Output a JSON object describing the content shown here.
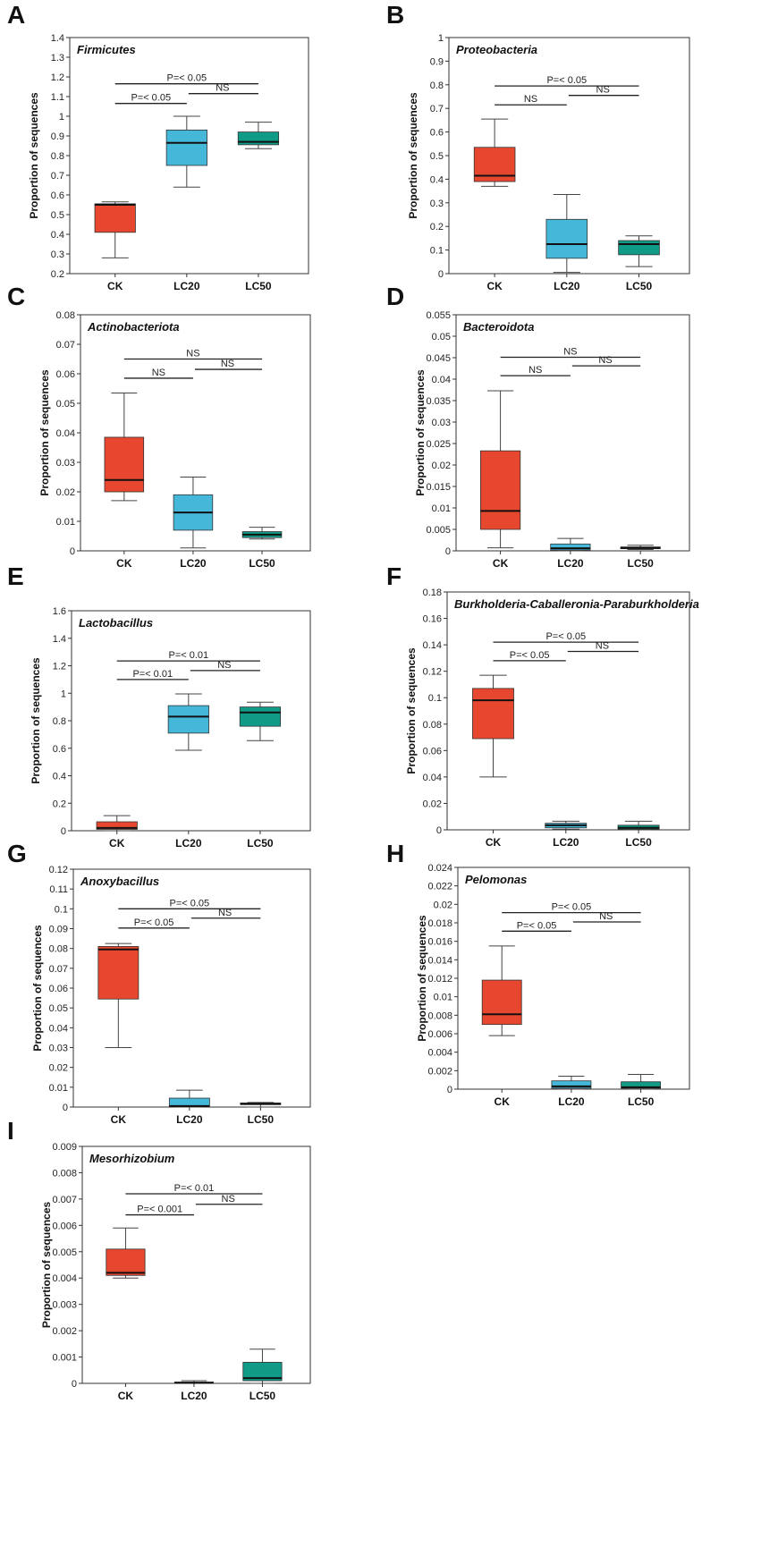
{
  "figure": {
    "y_axis_label": "Proportion of sequences",
    "colors": {
      "CK": "#e8472f",
      "LC20": "#45b8da",
      "LC50": "#109b87"
    }
  },
  "chart_data": [
    {
      "letter": "A",
      "type": "box",
      "title": "Firmicutes",
      "categories": [
        "CK",
        "LC20",
        "LC50"
      ],
      "ylim": [
        0.2,
        1.4
      ],
      "yticks": [
        0.2,
        0.3,
        0.4,
        0.5,
        0.6,
        0.7,
        0.8,
        0.9,
        1,
        1.1,
        1.2,
        1.3,
        1.4
      ],
      "ytick_labels": [
        "0.2",
        "0.3",
        "0.4",
        "0.5",
        "0.6",
        "0.7",
        "0.8",
        "0.9",
        "1",
        "1.1",
        "1.2",
        "1.3",
        "1.4"
      ],
      "boxes": [
        {
          "min": 0.28,
          "q1": 0.41,
          "median": 0.55,
          "q3": 0.555,
          "max": 0.565
        },
        {
          "min": 0.64,
          "q1": 0.75,
          "median": 0.865,
          "q3": 0.93,
          "max": 1.0
        },
        {
          "min": 0.835,
          "q1": 0.855,
          "median": 0.87,
          "q3": 0.92,
          "max": 0.97
        }
      ],
      "significance": [
        {
          "from": 0,
          "to": 2,
          "label": "P=< 0.05",
          "y": 1.165
        },
        {
          "from": 0,
          "to": 1,
          "label": "P=< 0.05",
          "y": 1.065
        },
        {
          "from": 1,
          "to": 2,
          "label": "NS",
          "y": 1.115
        }
      ]
    },
    {
      "letter": "B",
      "type": "box",
      "title": "Proteobacteria",
      "categories": [
        "CK",
        "LC20",
        "LC50"
      ],
      "ylim": [
        0,
        1
      ],
      "yticks": [
        0,
        0.1,
        0.2,
        0.3,
        0.4,
        0.5,
        0.6,
        0.7,
        0.8,
        0.9,
        1
      ],
      "ytick_labels": [
        "0",
        "0.1",
        "0.2",
        "0.3",
        "0.4",
        "0.5",
        "0.6",
        "0.7",
        "0.8",
        "0.9",
        "1"
      ],
      "boxes": [
        {
          "min": 0.37,
          "q1": 0.39,
          "median": 0.415,
          "q3": 0.535,
          "max": 0.655
        },
        {
          "min": 0.005,
          "q1": 0.065,
          "median": 0.125,
          "q3": 0.23,
          "max": 0.335
        },
        {
          "min": 0.03,
          "q1": 0.08,
          "median": 0.125,
          "q3": 0.14,
          "max": 0.16
        }
      ],
      "significance": [
        {
          "from": 0,
          "to": 2,
          "label": "P=< 0.05",
          "y": 0.795
        },
        {
          "from": 0,
          "to": 1,
          "label": "NS",
          "y": 0.715
        },
        {
          "from": 1,
          "to": 2,
          "label": "NS",
          "y": 0.755
        }
      ]
    },
    {
      "letter": "C",
      "type": "box",
      "title": "Actinobacteriota",
      "categories": [
        "CK",
        "LC20",
        "LC50"
      ],
      "ylim": [
        0,
        0.08
      ],
      "yticks": [
        0,
        0.01,
        0.02,
        0.03,
        0.04,
        0.05,
        0.06,
        0.07,
        0.08
      ],
      "ytick_labels": [
        "0",
        "0.01",
        "0.02",
        "0.03",
        "0.04",
        "0.05",
        "0.06",
        "0.07",
        "0.08"
      ],
      "boxes": [
        {
          "min": 0.017,
          "q1": 0.02,
          "median": 0.024,
          "q3": 0.0385,
          "max": 0.0535
        },
        {
          "min": 0.001,
          "q1": 0.007,
          "median": 0.013,
          "q3": 0.019,
          "max": 0.025
        },
        {
          "min": 0.004,
          "q1": 0.0045,
          "median": 0.0055,
          "q3": 0.0065,
          "max": 0.008
        }
      ],
      "significance": [
        {
          "from": 0,
          "to": 2,
          "label": "NS",
          "y": 0.065
        },
        {
          "from": 0,
          "to": 1,
          "label": "NS",
          "y": 0.0585
        },
        {
          "from": 1,
          "to": 2,
          "label": "NS",
          "y": 0.0615
        }
      ]
    },
    {
      "letter": "D",
      "type": "box",
      "title": "Bacteroidota",
      "categories": [
        "CK",
        "LC20",
        "LC50"
      ],
      "ylim": [
        0,
        0.055
      ],
      "yticks": [
        0,
        0.005,
        0.01,
        0.015,
        0.02,
        0.025,
        0.03,
        0.035,
        0.04,
        0.045,
        0.05,
        0.055
      ],
      "ytick_labels": [
        "0",
        "0.005",
        "0.01",
        "0.015",
        "0.02",
        "0.025",
        "0.03",
        "0.035",
        "0.04",
        "0.045",
        "0.05",
        "0.055"
      ],
      "boxes": [
        {
          "min": 0.0007,
          "q1": 0.005,
          "median": 0.0093,
          "q3": 0.0233,
          "max": 0.0373
        },
        {
          "min": 0.0,
          "q1": 0.0002,
          "median": 0.0006,
          "q3": 0.0016,
          "max": 0.0029
        },
        {
          "min": 0.0003,
          "q1": 0.0005,
          "median": 0.0007,
          "q3": 0.0009,
          "max": 0.0013
        }
      ],
      "significance": [
        {
          "from": 0,
          "to": 2,
          "label": "NS",
          "y": 0.0451
        },
        {
          "from": 0,
          "to": 1,
          "label": "NS",
          "y": 0.0408
        },
        {
          "from": 1,
          "to": 2,
          "label": "NS",
          "y": 0.0431
        }
      ]
    },
    {
      "letter": "E",
      "type": "box",
      "title": "Lactobacillus",
      "categories": [
        "CK",
        "LC20",
        "LC50"
      ],
      "ylim": [
        0,
        1.6
      ],
      "yticks": [
        0,
        0.2,
        0.4,
        0.6,
        0.8,
        1,
        1.2,
        1.4,
        1.6
      ],
      "ytick_labels": [
        "0",
        "0.2",
        "0.4",
        "0.6",
        "0.8",
        "1",
        "1.2",
        "1.4",
        "1.6"
      ],
      "boxes": [
        {
          "min": 0.0,
          "q1": 0.01,
          "median": 0.02,
          "q3": 0.065,
          "max": 0.11
        },
        {
          "min": 0.585,
          "q1": 0.71,
          "median": 0.83,
          "q3": 0.91,
          "max": 0.995
        },
        {
          "min": 0.655,
          "q1": 0.76,
          "median": 0.86,
          "q3": 0.9,
          "max": 0.935
        }
      ],
      "significance": [
        {
          "from": 0,
          "to": 2,
          "label": "P=< 0.01",
          "y": 1.235
        },
        {
          "from": 0,
          "to": 1,
          "label": "P=< 0.01",
          "y": 1.1
        },
        {
          "from": 1,
          "to": 2,
          "label": "NS",
          "y": 1.165
        }
      ]
    },
    {
      "letter": "F",
      "type": "box",
      "title": "Burkholderia-Caballeronia-Paraburkholderia",
      "categories": [
        "CK",
        "LC20",
        "LC50"
      ],
      "ylim": [
        0,
        0.18
      ],
      "yticks": [
        0,
        0.02,
        0.04,
        0.06,
        0.08,
        0.1,
        0.12,
        0.14,
        0.16,
        0.18
      ],
      "ytick_labels": [
        "0",
        "0.02",
        "0.04",
        "0.06",
        "0.08",
        "0.1",
        "0.12",
        "0.14",
        "0.16",
        "0.18"
      ],
      "boxes": [
        {
          "min": 0.04,
          "q1": 0.069,
          "median": 0.098,
          "q3": 0.107,
          "max": 0.117
        },
        {
          "min": 0.0005,
          "q1": 0.0015,
          "median": 0.0035,
          "q3": 0.005,
          "max": 0.0065
        },
        {
          "min": 0.0,
          "q1": 0.0005,
          "median": 0.0015,
          "q3": 0.0035,
          "max": 0.0065
        }
      ],
      "significance": [
        {
          "from": 0,
          "to": 2,
          "label": "P=< 0.05",
          "y": 0.142
        },
        {
          "from": 0,
          "to": 1,
          "label": "P=< 0.05",
          "y": 0.128
        },
        {
          "from": 1,
          "to": 2,
          "label": "NS",
          "y": 0.135
        }
      ]
    },
    {
      "letter": "G",
      "type": "box",
      "title": "Anoxybacillus",
      "categories": [
        "CK",
        "LC20",
        "LC50"
      ],
      "ylim": [
        0,
        0.12
      ],
      "yticks": [
        0,
        0.01,
        0.02,
        0.03,
        0.04,
        0.05,
        0.06,
        0.07,
        0.08,
        0.09,
        0.1,
        0.11,
        0.12
      ],
      "ytick_labels": [
        "0",
        "0.01",
        "0.02",
        "0.03",
        "0.04",
        "0.05",
        "0.06",
        "0.07",
        "0.08",
        "0.09",
        "0.1",
        "0.11",
        "0.12"
      ],
      "boxes": [
        {
          "min": 0.03,
          "q1": 0.0545,
          "median": 0.0795,
          "q3": 0.081,
          "max": 0.0825
        },
        {
          "min": 0.0,
          "q1": 0.0002,
          "median": 0.0005,
          "q3": 0.0045,
          "max": 0.0085
        },
        {
          "min": 0.0,
          "q1": 0.0012,
          "median": 0.0017,
          "q3": 0.002,
          "max": 0.0023
        }
      ],
      "significance": [
        {
          "from": 0,
          "to": 2,
          "label": "P=< 0.05",
          "y": 0.1
        },
        {
          "from": 0,
          "to": 1,
          "label": "P=< 0.05",
          "y": 0.0903
        },
        {
          "from": 1,
          "to": 2,
          "label": "NS",
          "y": 0.0953
        }
      ]
    },
    {
      "letter": "H",
      "type": "box",
      "title": "Pelomonas",
      "categories": [
        "CK",
        "LC20",
        "LC50"
      ],
      "ylim": [
        0,
        0.024
      ],
      "yticks": [
        0,
        0.002,
        0.004,
        0.006,
        0.008,
        0.01,
        0.012,
        0.014,
        0.016,
        0.018,
        0.02,
        0.022,
        0.024
      ],
      "ytick_labels": [
        "0",
        "0.002",
        "0.004",
        "0.006",
        "0.008",
        "0.01",
        "0.012",
        "0.014",
        "0.016",
        "0.018",
        "0.02",
        "0.022",
        "0.024"
      ],
      "boxes": [
        {
          "min": 0.0058,
          "q1": 0.007,
          "median": 0.0081,
          "q3": 0.0118,
          "max": 0.0155
        },
        {
          "min": 0.0,
          "q1": 0.0001,
          "median": 0.0003,
          "q3": 0.0009,
          "max": 0.0014
        },
        {
          "min": 0.0,
          "q1": 0.0001,
          "median": 0.0002,
          "q3": 0.0008,
          "max": 0.0016
        }
      ],
      "significance": [
        {
          "from": 0,
          "to": 2,
          "label": "P=< 0.05",
          "y": 0.0191
        },
        {
          "from": 0,
          "to": 1,
          "label": "P=< 0.05",
          "y": 0.0171
        },
        {
          "from": 1,
          "to": 2,
          "label": "NS",
          "y": 0.0181
        }
      ]
    },
    {
      "letter": "I",
      "type": "box",
      "title": "Mesorhizobium",
      "categories": [
        "CK",
        "LC20",
        "LC50"
      ],
      "ylim": [
        0,
        0.009
      ],
      "yticks": [
        0,
        0.001,
        0.002,
        0.003,
        0.004,
        0.005,
        0.006,
        0.007,
        0.008,
        0.009
      ],
      "ytick_labels": [
        "0",
        "0.001",
        "0.002",
        "0.003",
        "0.004",
        "0.005",
        "0.006",
        "0.007",
        "0.008",
        "0.009"
      ],
      "boxes": [
        {
          "min": 0.004,
          "q1": 0.0041,
          "median": 0.0042,
          "q3": 0.0051,
          "max": 0.0059
        },
        {
          "min": 0.0,
          "q1": 0.0,
          "median": 2e-05,
          "q3": 5e-05,
          "max": 0.0001
        },
        {
          "min": 0.0,
          "q1": 0.0001,
          "median": 0.0002,
          "q3": 0.0008,
          "max": 0.0013
        }
      ],
      "significance": [
        {
          "from": 0,
          "to": 2,
          "label": "P=< 0.01",
          "y": 0.0072
        },
        {
          "from": 0,
          "to": 1,
          "label": "P=< 0.001",
          "y": 0.0064
        },
        {
          "from": 1,
          "to": 2,
          "label": "NS",
          "y": 0.0068
        }
      ]
    }
  ]
}
